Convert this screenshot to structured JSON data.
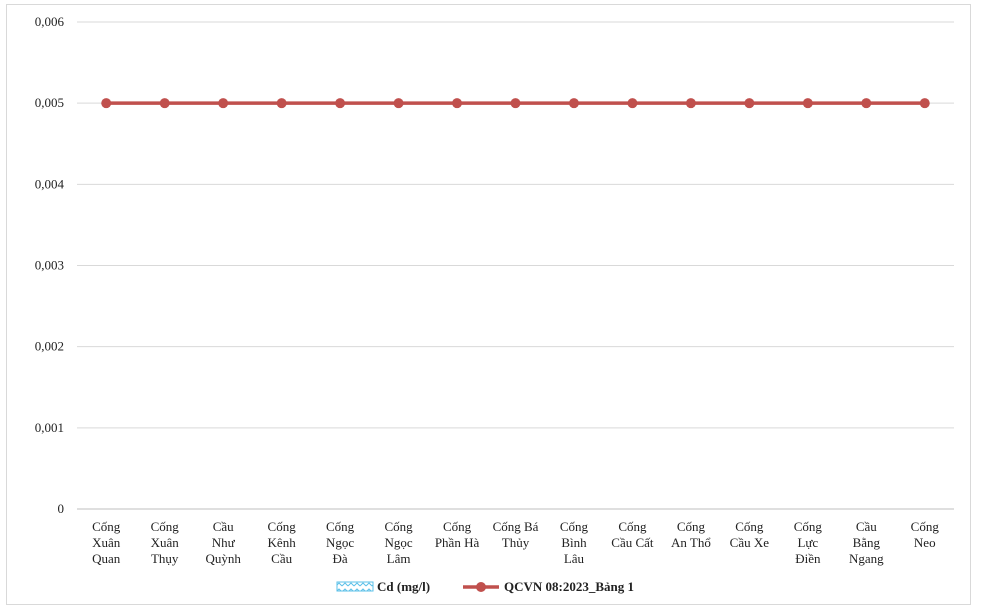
{
  "chart_data": {
    "type": "line",
    "categories": [
      [
        "Cống",
        "Xuân",
        "Quan"
      ],
      [
        "Cống",
        "Xuân",
        "Thụy"
      ],
      [
        "Cầu",
        "Như",
        "Quỳnh"
      ],
      [
        "Cống",
        "Kênh",
        "Cầu"
      ],
      [
        "Cống",
        "Ngọc",
        "Đà"
      ],
      [
        "Cống",
        "Ngọc",
        "Lâm"
      ],
      [
        "Cống",
        "Phần Hà"
      ],
      [
        "Cống Bá",
        "Thủy"
      ],
      [
        "Cống",
        "Bình",
        "Lâu"
      ],
      [
        "Cống",
        "Cầu Cất"
      ],
      [
        "Cống",
        "An Thổ"
      ],
      [
        "Cống",
        "Cầu Xe"
      ],
      [
        "Cống",
        "Lực",
        "Điền"
      ],
      [
        "Cầu",
        "Bằng",
        "Ngang"
      ],
      [
        "Cống",
        "Neo"
      ]
    ],
    "y_ticks": [
      "0",
      "0,001",
      "0,002",
      "0,003",
      "0,004",
      "0,005",
      "0,006"
    ],
    "ylim": [
      0,
      0.006
    ],
    "grid": true,
    "legend_position": "bottom",
    "series": [
      {
        "name": "Cd (mg/l)",
        "type": "bar",
        "color": "#5bc0e8",
        "values": [
          0,
          0,
          0,
          0,
          0,
          0,
          0,
          0,
          0,
          0,
          0,
          0,
          0,
          0,
          0
        ]
      },
      {
        "name": "QCVN 08:2023_Bảng 1",
        "type": "line",
        "color": "#c0504d",
        "values": [
          0.005,
          0.005,
          0.005,
          0.005,
          0.005,
          0.005,
          0.005,
          0.005,
          0.005,
          0.005,
          0.005,
          0.005,
          0.005,
          0.005,
          0.005
        ]
      }
    ]
  }
}
